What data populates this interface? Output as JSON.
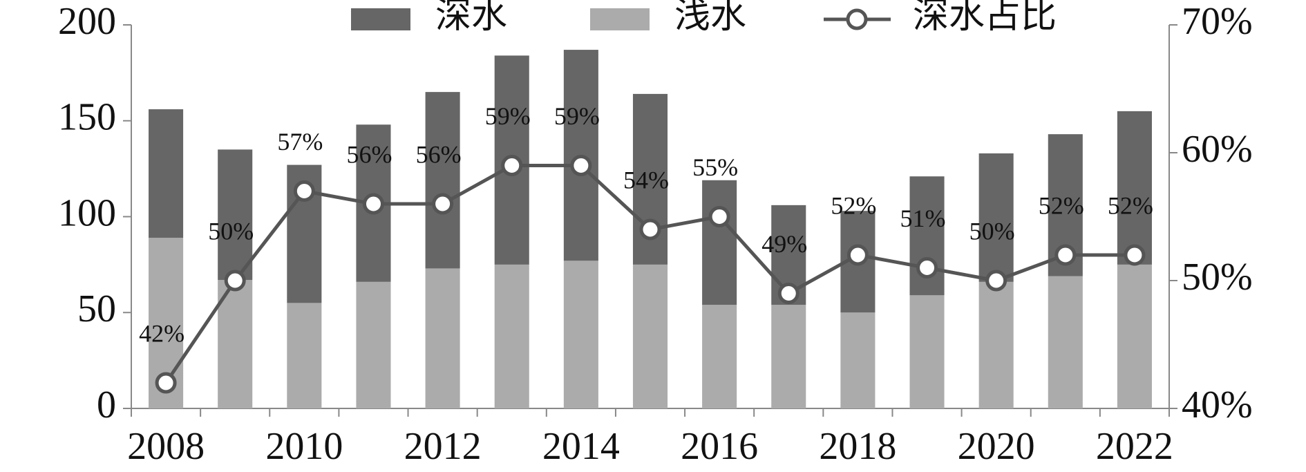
{
  "chart_data": {
    "type": "bar",
    "categories": [
      "2008",
      null,
      "2010",
      null,
      "2012",
      null,
      "2014",
      null,
      "2016",
      null,
      "2018",
      null,
      "2020",
      null,
      "2022"
    ],
    "series": [
      {
        "name": "深水",
        "color": "#666666",
        "values": [
          67,
          68,
          72,
          82,
          92,
          109,
          110,
          89,
          65,
          52,
          53,
          62,
          67,
          74,
          80
        ]
      },
      {
        "name": "浅水",
        "color": "#ababab",
        "values": [
          89,
          67,
          55,
          66,
          73,
          75,
          77,
          75,
          54,
          54,
          50,
          59,
          66,
          69,
          75
        ]
      },
      {
        "name": "深水占比",
        "type": "line",
        "axis": "y2",
        "color": "#555555",
        "values": [
          42,
          50,
          57,
          56,
          56,
          59,
          59,
          54,
          55,
          49,
          52,
          51,
          50,
          52,
          52
        ],
        "value_labels": [
          "42%",
          "50%",
          "57%",
          "56%",
          "56%",
          "59%",
          "59%",
          "54%",
          "55%",
          "49%",
          "52%",
          "51%",
          "50%",
          "52%",
          "52%"
        ]
      }
    ],
    "ylim": [
      0,
      200
    ],
    "yticks": [
      0,
      50,
      100,
      150,
      200
    ],
    "y2lim": [
      40,
      70
    ],
    "y2ticks": [
      {
        "value": 40,
        "label": "40%"
      },
      {
        "value": 50,
        "label": "50%"
      },
      {
        "value": 60,
        "label": "60%"
      },
      {
        "value": 70,
        "label": "70%"
      }
    ],
    "grid": false
  }
}
